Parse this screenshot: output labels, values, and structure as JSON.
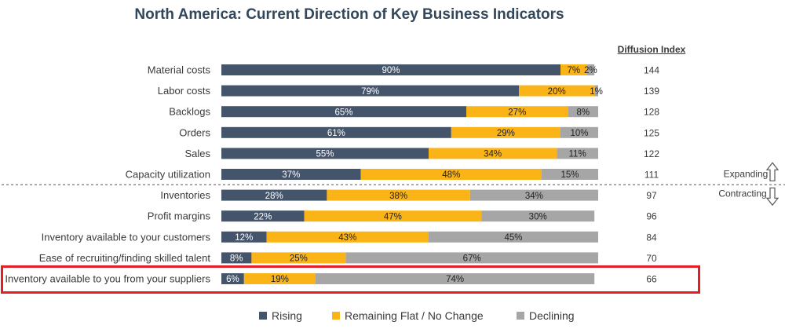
{
  "chart_data": {
    "type": "bar",
    "orientation": "horizontal",
    "stacked": true,
    "title": "North America: Current Direction of Key Business Indicators",
    "categories": [
      "Material costs",
      "Labor costs",
      "Backlogs",
      "Orders",
      "Sales",
      "Capacity utilization",
      "Inventories",
      "Profit margins",
      "Inventory available to your customers",
      "Ease of recruiting/finding skilled talent",
      "Inventory available to you from your suppliers"
    ],
    "series": [
      {
        "name": "Rising",
        "color": "#44546a",
        "text_color": "#ffffff",
        "values": [
          90,
          79,
          65,
          61,
          55,
          37,
          28,
          22,
          12,
          8,
          6
        ]
      },
      {
        "name": "Remaining Flat / No Change",
        "color": "#fbb417",
        "text_color": "#222222",
        "values": [
          7,
          20,
          27,
          29,
          34,
          48,
          38,
          47,
          43,
          25,
          19
        ]
      },
      {
        "name": "Declining",
        "color": "#a6a6a6",
        "text_color": "#222222",
        "values": [
          2,
          1,
          8,
          10,
          11,
          15,
          34,
          30,
          45,
          67,
          74
        ]
      }
    ],
    "value_suffix": "%",
    "xlim": [
      0,
      100
    ],
    "diffusion_index": {
      "header": "Diffusion Index",
      "values": [
        144,
        139,
        128,
        125,
        122,
        111,
        97,
        96,
        84,
        70,
        66
      ]
    },
    "threshold_after_index": 5,
    "zones": {
      "above": "Expanding",
      "below": "Contracting"
    },
    "highlighted_category_index": 10,
    "highlight_color": "#e41e26",
    "legend_position": "bottom",
    "grid": false
  }
}
